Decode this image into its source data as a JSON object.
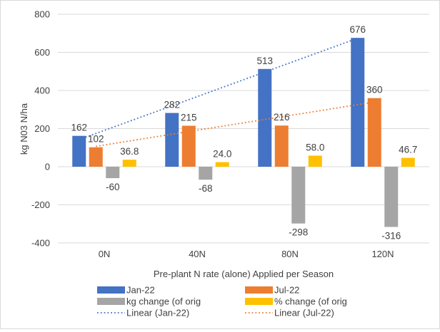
{
  "chart_data": {
    "type": "bar",
    "title": "",
    "xlabel": "Pre-plant N rate (alone) Applied per Season",
    "ylabel": "kg N03 N/ha",
    "ylim": [
      -400,
      800
    ],
    "yticks": [
      "-400",
      "-200",
      "0",
      "200",
      "400",
      "600",
      "800"
    ],
    "grid": true,
    "legend_position": "bottom",
    "categories": [
      "0N",
      "40N",
      "80N",
      "120N"
    ],
    "series": [
      {
        "name": "Jan-22",
        "color": "#4472c4",
        "values": [
          162,
          282,
          513,
          676
        ],
        "labels": [
          "162",
          "282",
          "513",
          "676"
        ]
      },
      {
        "name": "Jul-22",
        "color": "#ed7d31",
        "values": [
          102,
          215,
          216,
          360
        ],
        "labels": [
          "102",
          "215",
          "216",
          "360"
        ]
      },
      {
        "name": "kg change (of orig",
        "color": "#a5a5a5",
        "values": [
          -60,
          -68,
          -298,
          -316
        ],
        "labels": [
          "-60",
          "-68",
          "-298",
          "-316"
        ]
      },
      {
        "name": "% change (of orig",
        "color": "#ffc000",
        "values": [
          36.8,
          24.0,
          58.0,
          46.7
        ],
        "labels": [
          "36.8",
          "24.0",
          "58.0",
          "46.7"
        ]
      }
    ],
    "trendlines": [
      {
        "name": "Linear (Jan-22)",
        "series": "Jan-22",
        "color": "#4472c4",
        "style": "dotted"
      },
      {
        "name": "Linear (Jul-22)",
        "series": "Jul-22",
        "color": "#ed7d31",
        "style": "dotted"
      }
    ]
  }
}
